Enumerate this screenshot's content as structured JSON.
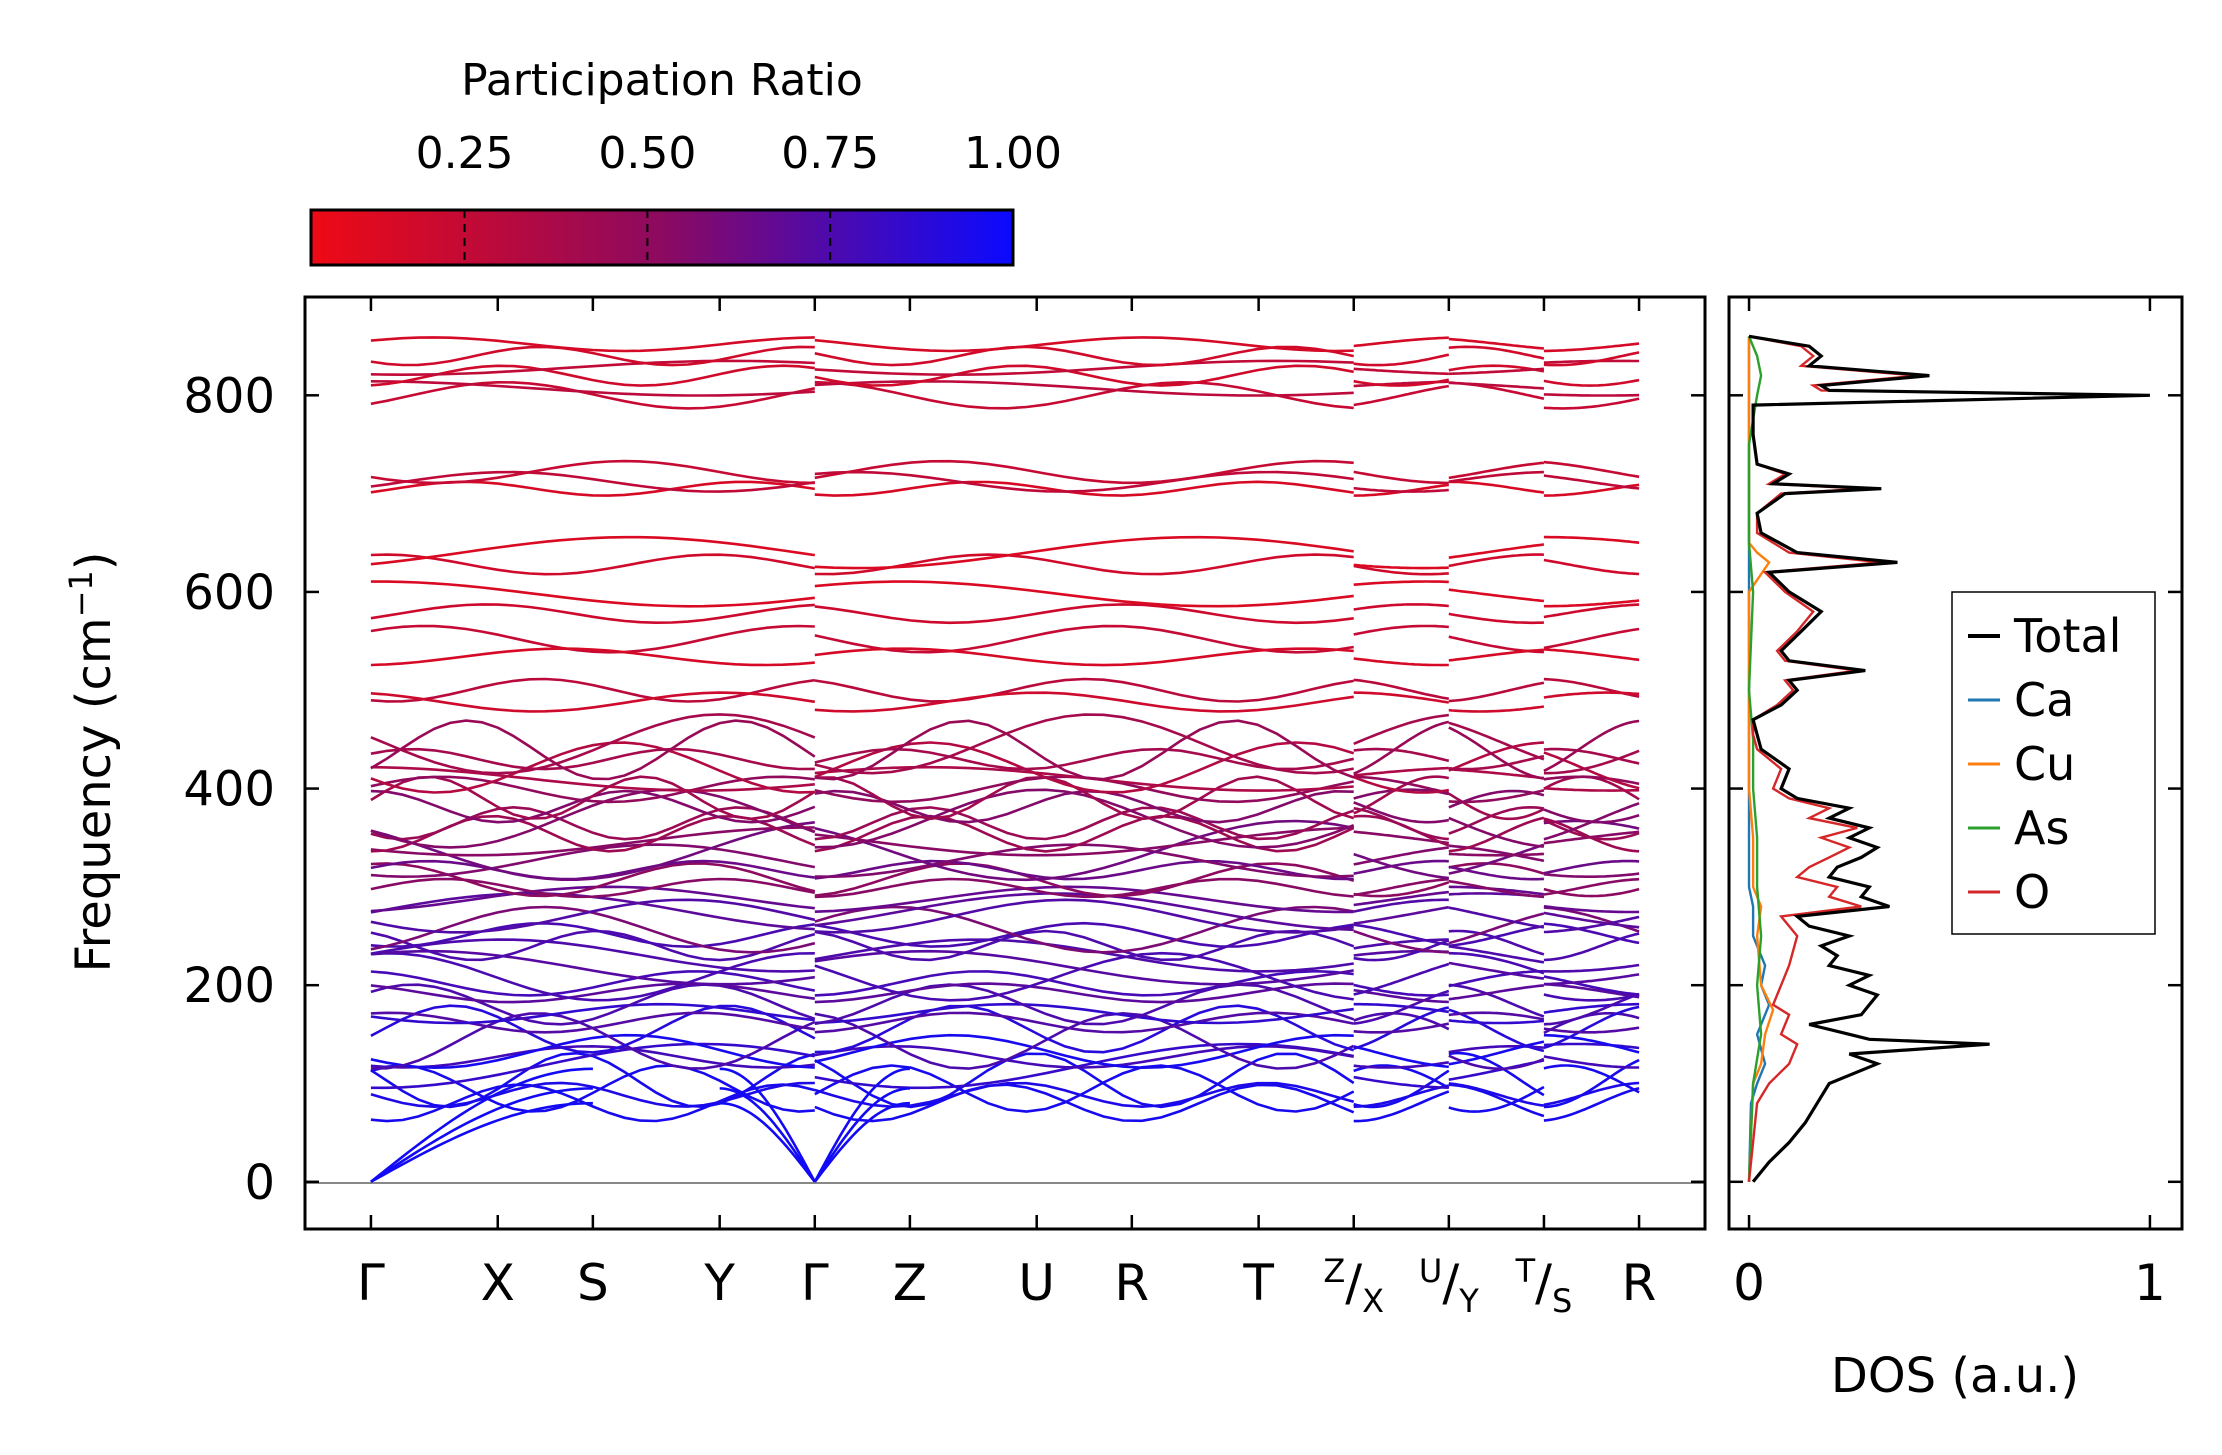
{
  "chart_data": [
    {
      "type": "line",
      "name": "phonon-band-structure",
      "ylabel_main": "Frequency (cm",
      "ylabel_sup": "−1",
      "ylabel_close": ")",
      "ylim": [
        -48,
        900
      ],
      "yticks": [
        0,
        200,
        400,
        600,
        800
      ],
      "ytick_labels": [
        "0",
        "200",
        "400",
        "600",
        "800"
      ],
      "kpoints": [
        {
          "label": "Γ",
          "x": 0.0
        },
        {
          "label": "X",
          "x": 1.0
        },
        {
          "label": "S",
          "x": 1.75
        },
        {
          "label": "Y",
          "x": 2.75
        },
        {
          "label": "Γ",
          "x": 3.5
        },
        {
          "label": "Z",
          "x": 4.25
        },
        {
          "label": "U",
          "x": 5.25
        },
        {
          "label": "R",
          "x": 6.0
        },
        {
          "label": "T",
          "x": 7.0
        },
        {
          "label": "X",
          "pre": "Z",
          "x": 7.75
        },
        {
          "label": "Y",
          "pre": "U",
          "x": 8.5
        },
        {
          "label": "S",
          "pre": "T",
          "x": 9.25
        },
        {
          "label": "R",
          "x": 10.0
        }
      ],
      "xlim": [
        -0.52,
        10.52
      ],
      "segment_breaks": [
        3.5,
        7.75,
        8.5,
        9.25
      ],
      "high_bands_anchors": [
        800,
        807,
        820,
        828,
        840,
        852,
        705,
        712,
        722,
        628,
        640,
        578,
        598,
        552,
        534,
        500,
        488
      ],
      "colorbar": {
        "title": "Participation Ratio",
        "ticks": [
          0.25,
          0.5,
          0.75,
          1.0
        ],
        "tick_labels": [
          "0.25",
          "0.50",
          "0.75",
          "1.00"
        ],
        "range": [
          0.04,
          1.0
        ],
        "color_low": "#ee0a14",
        "color_mid": "#8c0a60",
        "color_high": "#0a0aff"
      }
    },
    {
      "type": "line",
      "name": "density-of-states",
      "xlabel": "DOS (a.u.)",
      "xticks": [
        0,
        1
      ],
      "xtick_labels": [
        "0",
        "1"
      ],
      "xlim": [
        -0.05,
        1.08
      ],
      "ylim": [
        -48,
        900
      ],
      "legend_position": "right",
      "series": [
        {
          "name": "Total",
          "color": "#000000",
          "y": [
            0,
            20,
            40,
            60,
            80,
            100,
            120,
            130,
            140,
            145,
            150,
            160,
            170,
            180,
            190,
            200,
            210,
            220,
            230,
            240,
            250,
            260,
            270,
            280,
            290,
            300,
            310,
            320,
            330,
            340,
            350,
            360,
            370,
            380,
            390,
            400,
            420,
            440,
            455,
            470,
            485,
            500,
            510,
            520,
            530,
            540,
            560,
            580,
            600,
            620,
            630,
            640,
            660,
            680,
            700,
            705,
            710,
            720,
            730,
            760,
            790,
            800,
            805,
            810,
            820,
            830,
            840,
            850,
            860
          ],
          "v": [
            0.01,
            0.05,
            0.1,
            0.14,
            0.17,
            0.2,
            0.32,
            0.25,
            0.6,
            0.3,
            0.25,
            0.15,
            0.28,
            0.3,
            0.32,
            0.25,
            0.3,
            0.2,
            0.22,
            0.18,
            0.25,
            0.15,
            0.12,
            0.35,
            0.28,
            0.3,
            0.2,
            0.22,
            0.28,
            0.32,
            0.25,
            0.3,
            0.2,
            0.25,
            0.12,
            0.08,
            0.1,
            0.03,
            0.02,
            0.01,
            0.08,
            0.12,
            0.1,
            0.29,
            0.1,
            0.08,
            0.13,
            0.18,
            0.1,
            0.05,
            0.37,
            0.12,
            0.03,
            0.02,
            0.09,
            0.33,
            0.06,
            0.1,
            0.02,
            0.01,
            0.01,
            1.0,
            0.2,
            0.18,
            0.45,
            0.15,
            0.18,
            0.15,
            0.0
          ]
        },
        {
          "name": "Ca",
          "color": "#1f77b4",
          "y": [
            0,
            80,
            100,
            120,
            150,
            180,
            200,
            220,
            250,
            280,
            300,
            400,
            860
          ],
          "v": [
            0.0,
            0.005,
            0.02,
            0.04,
            0.02,
            0.05,
            0.03,
            0.04,
            0.01,
            0.01,
            0.0,
            0.0,
            0.0
          ]
        },
        {
          "name": "Cu",
          "color": "#ff7f0e",
          "y": [
            0,
            100,
            120,
            150,
            175,
            200,
            250,
            280,
            300,
            350,
            400,
            600,
            630,
            640,
            650,
            700,
            860
          ],
          "v": [
            0.0,
            0.01,
            0.03,
            0.04,
            0.06,
            0.03,
            0.02,
            0.03,
            0.01,
            0.01,
            0.0,
            0.0,
            0.05,
            0.02,
            0.0,
            0.0,
            0.0
          ]
        },
        {
          "name": "As",
          "color": "#2ca02c",
          "y": [
            0,
            100,
            150,
            200,
            250,
            300,
            350,
            400,
            450,
            500,
            600,
            650,
            700,
            750,
            800,
            820,
            840,
            860
          ],
          "v": [
            0.0,
            0.01,
            0.03,
            0.02,
            0.03,
            0.02,
            0.02,
            0.01,
            0.01,
            0.0,
            0.01,
            0.0,
            0.0,
            0.0,
            0.02,
            0.03,
            0.02,
            0.0
          ]
        },
        {
          "name": "O",
          "color": "#d62728",
          "y": [
            0,
            80,
            100,
            120,
            140,
            150,
            170,
            180,
            200,
            220,
            250,
            270,
            280,
            290,
            300,
            310,
            320,
            330,
            340,
            350,
            360,
            370,
            380,
            390,
            400,
            420,
            440,
            455,
            470,
            485,
            500,
            510,
            520,
            530,
            540,
            560,
            580,
            600,
            620,
            630,
            640,
            660,
            680,
            700,
            705,
            710,
            720,
            730,
            760,
            790,
            800,
            805,
            810,
            820,
            830,
            840,
            850,
            860
          ],
          "v": [
            0.0,
            0.02,
            0.05,
            0.1,
            0.12,
            0.08,
            0.1,
            0.06,
            0.08,
            0.1,
            0.12,
            0.08,
            0.28,
            0.2,
            0.22,
            0.12,
            0.15,
            0.2,
            0.25,
            0.18,
            0.27,
            0.15,
            0.2,
            0.1,
            0.06,
            0.08,
            0.02,
            0.01,
            0.01,
            0.07,
            0.11,
            0.09,
            0.27,
            0.09,
            0.07,
            0.12,
            0.16,
            0.09,
            0.04,
            0.33,
            0.1,
            0.02,
            0.02,
            0.08,
            0.29,
            0.05,
            0.09,
            0.02,
            0.01,
            0.01,
            0.99,
            0.18,
            0.16,
            0.42,
            0.13,
            0.16,
            0.13,
            0.0
          ]
        }
      ]
    }
  ]
}
